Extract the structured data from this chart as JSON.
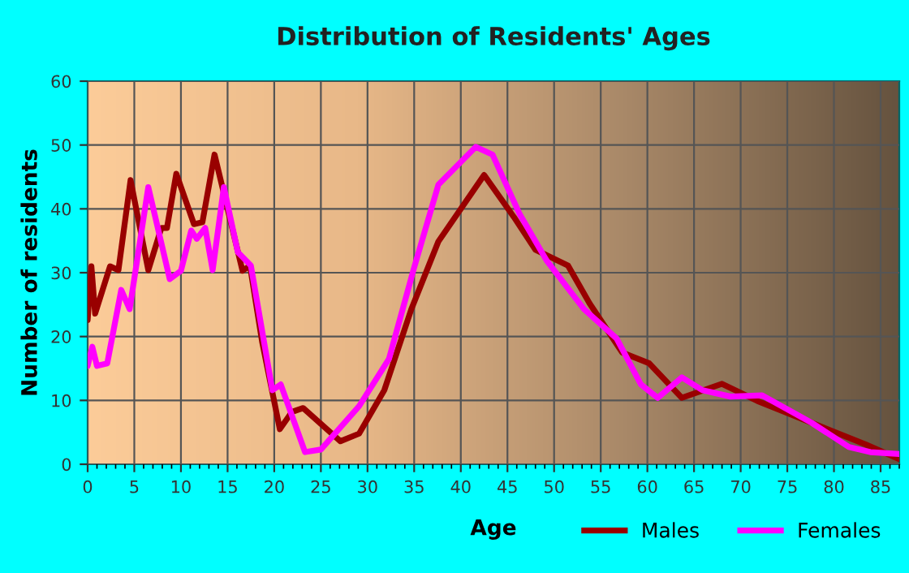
{
  "chart_data": {
    "type": "line",
    "title": "Distribution of Residents' Ages",
    "xlabel": "Age",
    "ylabel": "Number of residents",
    "xlim": [
      0,
      87
    ],
    "xticks": [
      0,
      5,
      10,
      15,
      20,
      25,
      30,
      35,
      40,
      45,
      50,
      55,
      60,
      65,
      70,
      75,
      80,
      85
    ],
    "ylim": [
      0,
      60
    ],
    "yticks": [
      0,
      10,
      20,
      30,
      40,
      50,
      60
    ],
    "grid": true,
    "legend": "bottom right",
    "marker": "none",
    "line_style": "solid",
    "series": [
      {
        "name": "Males",
        "color": "#990000",
        "x": [
          0,
          0.4,
          0.8,
          2.4,
          3.3,
          4.6,
          6.5,
          7.9,
          8.5,
          9.5,
          11.4,
          12.3,
          13.6,
          16.6,
          17.4,
          18.7,
          20.6,
          21.9,
          23.1,
          27.1,
          29.1,
          31.8,
          34.7,
          37.6,
          42.5,
          45.7,
          48,
          51.5,
          53.8,
          57.3,
          60.2,
          63.7,
          68,
          71.8,
          77.6,
          83.4,
          87
        ],
        "values": [
          22.6,
          31,
          23.6,
          31,
          30.4,
          44.5,
          30.4,
          37,
          37,
          45.5,
          37.6,
          37.9,
          48.5,
          30.3,
          31.1,
          19.2,
          5.5,
          8.2,
          8.8,
          3.6,
          4.8,
          11.6,
          24.3,
          34.9,
          45.3,
          38.7,
          33.6,
          31.1,
          25.2,
          17.5,
          15.8,
          10.4,
          12.6,
          9.9,
          6.5,
          3.1,
          0.8
        ]
      },
      {
        "name": "Females",
        "color": "#ff00ff",
        "x": [
          0,
          0.5,
          1,
          2.1,
          3.6,
          4.5,
          6.5,
          8.8,
          10,
          11.1,
          11.7,
          12.6,
          13.4,
          14.6,
          16.1,
          17.5,
          19.8,
          20.7,
          23.3,
          25,
          29.1,
          32.3,
          34.9,
          37.6,
          41.6,
          43.4,
          46.3,
          49.2,
          53.2,
          56.7,
          59.3,
          61.1,
          63.7,
          65.9,
          68.9,
          72.3,
          77.6,
          81.6,
          83.9,
          87
        ],
        "values": [
          15.4,
          18.4,
          15.4,
          15.8,
          27.3,
          24.3,
          43.4,
          29,
          30.3,
          36.6,
          35.3,
          37,
          30.4,
          43.4,
          33.2,
          31.1,
          11.6,
          12.5,
          1.9,
          2.3,
          9.1,
          16.5,
          30.3,
          43.8,
          49.7,
          48.5,
          39.2,
          31.9,
          24.3,
          19.7,
          12.5,
          10.4,
          13.6,
          11.6,
          10.6,
          10.8,
          6.5,
          2.7,
          1.9,
          1.6
        ]
      }
    ]
  }
}
